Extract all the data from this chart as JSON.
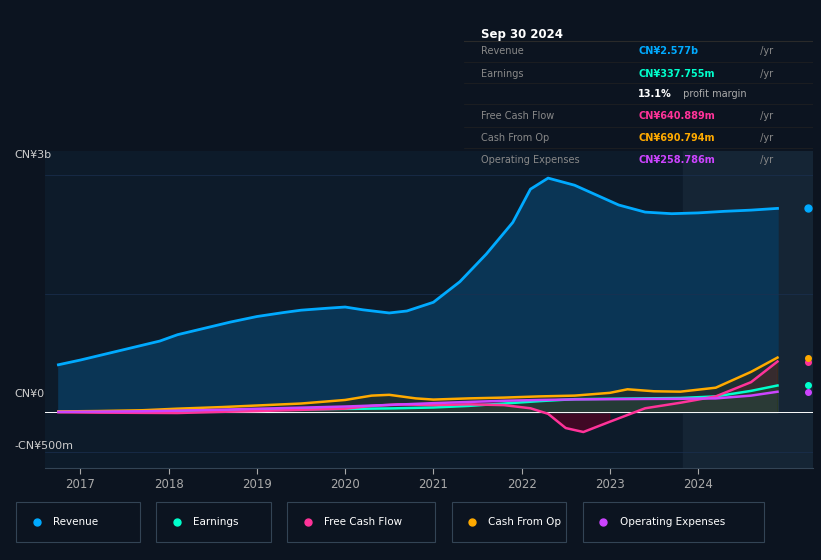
{
  "bg_color": "#0c1420",
  "chart_bg": "#0d1b2a",
  "grid_color": "#1a3050",
  "header": "Sep 30 2024",
  "info_rows": [
    {
      "label": "Revenue",
      "value": "CN¥2.577b",
      "suffix": " /yr",
      "value_color": "#00aaff"
    },
    {
      "label": "Earnings",
      "value": "CN¥337.755m",
      "suffix": " /yr",
      "value_color": "#00ffcc"
    },
    {
      "label": "",
      "value": "13.1%",
      "suffix": " profit margin",
      "value_color": "#ffffff"
    },
    {
      "label": "Free Cash Flow",
      "value": "CN¥640.889m",
      "suffix": " /yr",
      "value_color": "#ff3399"
    },
    {
      "label": "Cash From Op",
      "value": "CN¥690.794m",
      "suffix": " /yr",
      "value_color": "#ffaa00"
    },
    {
      "label": "Operating Expenses",
      "value": "CN¥258.786m",
      "suffix": " /yr",
      "value_color": "#cc44ff"
    }
  ],
  "ylabel_top": "CN¥3b",
  "ylabel_zero": "CN¥0",
  "ylabel_bot": "-CN¥500m",
  "xlim": [
    2016.6,
    2025.3
  ],
  "ylim": [
    -700,
    3300
  ],
  "xticks": [
    2017,
    2018,
    2019,
    2020,
    2021,
    2022,
    2023,
    2024
  ],
  "revenue": {
    "x": [
      2016.75,
      2017.0,
      2017.3,
      2017.6,
      2017.9,
      2018.1,
      2018.4,
      2018.7,
      2019.0,
      2019.3,
      2019.5,
      2019.8,
      2020.0,
      2020.2,
      2020.5,
      2020.7,
      2021.0,
      2021.3,
      2021.6,
      2021.9,
      2022.1,
      2022.3,
      2022.6,
      2022.9,
      2023.1,
      2023.4,
      2023.7,
      2024.0,
      2024.3,
      2024.6,
      2024.9
    ],
    "y": [
      600,
      660,
      740,
      820,
      900,
      980,
      1060,
      1140,
      1210,
      1260,
      1290,
      1315,
      1330,
      1295,
      1255,
      1280,
      1390,
      1650,
      2000,
      2400,
      2820,
      2960,
      2870,
      2720,
      2620,
      2530,
      2510,
      2520,
      2540,
      2555,
      2577
    ],
    "color": "#00aaff",
    "fill_color": "#0a3555",
    "linewidth": 2.0
  },
  "earnings": {
    "x": [
      2016.75,
      2017.2,
      2017.7,
      2018.1,
      2018.6,
      2019.0,
      2019.5,
      2020.0,
      2020.5,
      2021.0,
      2021.4,
      2021.8,
      2022.2,
      2022.6,
      2023.0,
      2023.4,
      2023.8,
      2024.2,
      2024.6,
      2024.9
    ],
    "y": [
      5,
      8,
      12,
      18,
      25,
      32,
      38,
      42,
      48,
      60,
      80,
      110,
      140,
      165,
      170,
      175,
      180,
      200,
      270,
      338
    ],
    "color": "#00ffcc",
    "fill_color": "#006655",
    "linewidth": 1.8
  },
  "free_cash_flow": {
    "x": [
      2016.75,
      2017.2,
      2017.7,
      2018.1,
      2018.6,
      2019.0,
      2019.5,
      2020.0,
      2020.3,
      2020.6,
      2021.0,
      2021.4,
      2021.8,
      2022.1,
      2022.3,
      2022.5,
      2022.7,
      2023.0,
      2023.4,
      2023.8,
      2024.2,
      2024.6,
      2024.9
    ],
    "y": [
      0,
      -5,
      -8,
      -10,
      5,
      15,
      30,
      45,
      80,
      100,
      90,
      100,
      90,
      50,
      -20,
      -200,
      -250,
      -120,
      50,
      120,
      200,
      380,
      641
    ],
    "color": "#ff3399",
    "fill_color": "#661133",
    "linewidth": 1.8
  },
  "cash_from_op": {
    "x": [
      2016.75,
      2017.2,
      2017.7,
      2018.1,
      2018.6,
      2019.0,
      2019.5,
      2020.0,
      2020.3,
      2020.5,
      2020.8,
      2021.0,
      2021.4,
      2021.8,
      2022.2,
      2022.6,
      2023.0,
      2023.2,
      2023.5,
      2023.8,
      2024.2,
      2024.6,
      2024.9
    ],
    "y": [
      10,
      15,
      25,
      45,
      65,
      85,
      110,
      155,
      210,
      220,
      175,
      160,
      175,
      185,
      200,
      210,
      245,
      290,
      265,
      260,
      310,
      510,
      691
    ],
    "color": "#ffaa00",
    "fill_color": "#554400",
    "linewidth": 1.8
  },
  "operating_expenses": {
    "x": [
      2016.75,
      2017.2,
      2017.7,
      2018.1,
      2018.6,
      2019.0,
      2019.5,
      2020.0,
      2020.5,
      2021.0,
      2021.4,
      2021.8,
      2022.2,
      2022.6,
      2023.0,
      2023.4,
      2023.8,
      2024.2,
      2024.6,
      2024.9
    ],
    "y": [
      5,
      8,
      12,
      20,
      32,
      44,
      58,
      72,
      92,
      115,
      130,
      145,
      155,
      162,
      165,
      168,
      170,
      175,
      210,
      259
    ],
    "color": "#cc44ff",
    "fill_color": "#441166",
    "linewidth": 1.8
  },
  "legend": [
    {
      "label": "Revenue",
      "color": "#00aaff"
    },
    {
      "label": "Earnings",
      "color": "#00ffcc"
    },
    {
      "label": "Free Cash Flow",
      "color": "#ff3399"
    },
    {
      "label": "Cash From Op",
      "color": "#ffaa00"
    },
    {
      "label": "Operating Expenses",
      "color": "#cc44ff"
    }
  ],
  "shaded_x_start": 2023.83,
  "shaded_color": "#152535"
}
